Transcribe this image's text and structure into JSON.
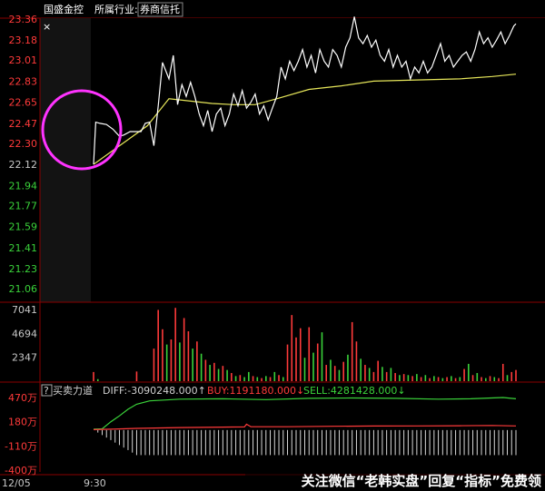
{
  "header": {
    "stock_name": "国盛金控",
    "tab_industry": "所属行业:",
    "tab_sector": "券商信托",
    "close_glyph": "×"
  },
  "chart_data": {
    "type": "line",
    "price_axis": {
      "ticks_red": [
        "23.36",
        "23.18",
        "23.01",
        "22.83",
        "22.65",
        "22.47",
        "22.30"
      ],
      "ticks_white": [
        "22.12"
      ],
      "ticks_green": [
        "21.94",
        "21.77",
        "21.59",
        "21.41",
        "21.23",
        "21.06"
      ],
      "ylim": [
        21.06,
        23.36
      ]
    },
    "x_labels": [
      "12/05",
      "9:30"
    ],
    "price_series": [
      {
        "x": 0,
        "y": 22.12
      },
      {
        "x": 1,
        "y": 22.48
      },
      {
        "x": 3,
        "y": 22.47
      },
      {
        "x": 6,
        "y": 22.46
      },
      {
        "x": 9,
        "y": 22.42
      },
      {
        "x": 12,
        "y": 22.36
      },
      {
        "x": 14,
        "y": 22.37
      },
      {
        "x": 17,
        "y": 22.4
      },
      {
        "x": 22,
        "y": 22.4
      },
      {
        "x": 24,
        "y": 22.47
      },
      {
        "x": 26,
        "y": 22.48
      },
      {
        "x": 28,
        "y": 22.28
      },
      {
        "x": 30,
        "y": 22.62
      },
      {
        "x": 32,
        "y": 22.99
      },
      {
        "x": 35,
        "y": 22.85
      },
      {
        "x": 37,
        "y": 23.05
      },
      {
        "x": 39,
        "y": 22.63
      },
      {
        "x": 41,
        "y": 22.8
      },
      {
        "x": 43,
        "y": 22.7
      },
      {
        "x": 45,
        "y": 22.82
      },
      {
        "x": 47,
        "y": 22.7
      },
      {
        "x": 49,
        "y": 22.55
      },
      {
        "x": 51,
        "y": 22.45
      },
      {
        "x": 53,
        "y": 22.58
      },
      {
        "x": 55,
        "y": 22.4
      },
      {
        "x": 57,
        "y": 22.55
      },
      {
        "x": 59,
        "y": 22.6
      },
      {
        "x": 61,
        "y": 22.45
      },
      {
        "x": 63,
        "y": 22.55
      },
      {
        "x": 65,
        "y": 22.72
      },
      {
        "x": 67,
        "y": 22.62
      },
      {
        "x": 69,
        "y": 22.75
      },
      {
        "x": 71,
        "y": 22.6
      },
      {
        "x": 73,
        "y": 22.65
      },
      {
        "x": 75,
        "y": 22.72
      },
      {
        "x": 77,
        "y": 22.55
      },
      {
        "x": 79,
        "y": 22.62
      },
      {
        "x": 81,
        "y": 22.5
      },
      {
        "x": 83,
        "y": 22.6
      },
      {
        "x": 85,
        "y": 22.7
      },
      {
        "x": 87,
        "y": 22.95
      },
      {
        "x": 89,
        "y": 22.85
      },
      {
        "x": 91,
        "y": 23.0
      },
      {
        "x": 93,
        "y": 22.92
      },
      {
        "x": 95,
        "y": 23.0
      },
      {
        "x": 97,
        "y": 23.1
      },
      {
        "x": 99,
        "y": 22.95
      },
      {
        "x": 101,
        "y": 23.05
      },
      {
        "x": 103,
        "y": 22.9
      },
      {
        "x": 105,
        "y": 23.1
      },
      {
        "x": 107,
        "y": 23.0
      },
      {
        "x": 109,
        "y": 22.95
      },
      {
        "x": 111,
        "y": 23.1
      },
      {
        "x": 113,
        "y": 23.05
      },
      {
        "x": 115,
        "y": 22.95
      },
      {
        "x": 117,
        "y": 23.12
      },
      {
        "x": 119,
        "y": 23.2
      },
      {
        "x": 121,
        "y": 23.38
      },
      {
        "x": 123,
        "y": 23.2
      },
      {
        "x": 125,
        "y": 23.15
      },
      {
        "x": 127,
        "y": 23.22
      },
      {
        "x": 129,
        "y": 23.12
      },
      {
        "x": 131,
        "y": 23.18
      },
      {
        "x": 133,
        "y": 23.05
      },
      {
        "x": 135,
        "y": 23.0
      },
      {
        "x": 137,
        "y": 23.1
      },
      {
        "x": 139,
        "y": 22.95
      },
      {
        "x": 141,
        "y": 23.05
      },
      {
        "x": 143,
        "y": 22.95
      },
      {
        "x": 145,
        "y": 23.0
      },
      {
        "x": 147,
        "y": 22.85
      },
      {
        "x": 149,
        "y": 22.95
      },
      {
        "x": 151,
        "y": 22.9
      },
      {
        "x": 153,
        "y": 23.0
      },
      {
        "x": 155,
        "y": 22.9
      },
      {
        "x": 157,
        "y": 22.95
      },
      {
        "x": 159,
        "y": 23.05
      },
      {
        "x": 161,
        "y": 23.15
      },
      {
        "x": 163,
        "y": 23.0
      },
      {
        "x": 165,
        "y": 23.05
      },
      {
        "x": 167,
        "y": 22.95
      },
      {
        "x": 169,
        "y": 23.0
      },
      {
        "x": 171,
        "y": 23.05
      },
      {
        "x": 173,
        "y": 23.08
      },
      {
        "x": 175,
        "y": 23.0
      },
      {
        "x": 177,
        "y": 23.1
      },
      {
        "x": 179,
        "y": 23.25
      },
      {
        "x": 181,
        "y": 23.15
      },
      {
        "x": 183,
        "y": 23.2
      },
      {
        "x": 185,
        "y": 23.12
      },
      {
        "x": 187,
        "y": 23.18
      },
      {
        "x": 189,
        "y": 23.25
      },
      {
        "x": 191,
        "y": 23.15
      },
      {
        "x": 193,
        "y": 23.22
      },
      {
        "x": 195,
        "y": 23.3
      },
      {
        "x": 196,
        "y": 23.32
      }
    ],
    "avg_series": [
      {
        "x": 0,
        "y": 22.12
      },
      {
        "x": 25,
        "y": 22.45
      },
      {
        "x": 35,
        "y": 22.68
      },
      {
        "x": 45,
        "y": 22.66
      },
      {
        "x": 55,
        "y": 22.64
      },
      {
        "x": 65,
        "y": 22.63
      },
      {
        "x": 75,
        "y": 22.63
      },
      {
        "x": 85,
        "y": 22.68
      },
      {
        "x": 100,
        "y": 22.76
      },
      {
        "x": 115,
        "y": 22.79
      },
      {
        "x": 130,
        "y": 22.83
      },
      {
        "x": 150,
        "y": 22.84
      },
      {
        "x": 170,
        "y": 22.85
      },
      {
        "x": 185,
        "y": 22.87
      },
      {
        "x": 196,
        "y": 22.89
      }
    ],
    "volume_axis": {
      "ticks": [
        "7041",
        "4694",
        "2347"
      ],
      "ylim": [
        0,
        7041
      ]
    },
    "volume_bars": [
      {
        "x": 0,
        "v": 900,
        "c": "r"
      },
      {
        "x": 2,
        "v": 200,
        "c": "g"
      },
      {
        "x": 20,
        "v": 950,
        "c": "r"
      },
      {
        "x": 28,
        "v": 3200,
        "c": "r"
      },
      {
        "x": 30,
        "v": 7000,
        "c": "r"
      },
      {
        "x": 32,
        "v": 5100,
        "c": "r"
      },
      {
        "x": 34,
        "v": 3600,
        "c": "g"
      },
      {
        "x": 36,
        "v": 4100,
        "c": "r"
      },
      {
        "x": 38,
        "v": 7200,
        "c": "r"
      },
      {
        "x": 40,
        "v": 3800,
        "c": "g"
      },
      {
        "x": 42,
        "v": 6200,
        "c": "r"
      },
      {
        "x": 44,
        "v": 4900,
        "c": "r"
      },
      {
        "x": 46,
        "v": 3200,
        "c": "g"
      },
      {
        "x": 48,
        "v": 3900,
        "c": "r"
      },
      {
        "x": 50,
        "v": 2700,
        "c": "g"
      },
      {
        "x": 52,
        "v": 2100,
        "c": "r"
      },
      {
        "x": 54,
        "v": 1600,
        "c": "g"
      },
      {
        "x": 56,
        "v": 1800,
        "c": "r"
      },
      {
        "x": 58,
        "v": 1200,
        "c": "g"
      },
      {
        "x": 60,
        "v": 1500,
        "c": "r"
      },
      {
        "x": 62,
        "v": 1100,
        "c": "g"
      },
      {
        "x": 64,
        "v": 800,
        "c": "r"
      },
      {
        "x": 66,
        "v": 500,
        "c": "g"
      },
      {
        "x": 68,
        "v": 600,
        "c": "r"
      },
      {
        "x": 70,
        "v": 400,
        "c": "g"
      },
      {
        "x": 72,
        "v": 900,
        "c": "g"
      },
      {
        "x": 74,
        "v": 500,
        "c": "r"
      },
      {
        "x": 76,
        "v": 400,
        "c": "g"
      },
      {
        "x": 78,
        "v": 300,
        "c": "r"
      },
      {
        "x": 80,
        "v": 500,
        "c": "g"
      },
      {
        "x": 82,
        "v": 400,
        "c": "r"
      },
      {
        "x": 84,
        "v": 900,
        "c": "g"
      },
      {
        "x": 86,
        "v": 600,
        "c": "r"
      },
      {
        "x": 88,
        "v": 400,
        "c": "g"
      },
      {
        "x": 90,
        "v": 3600,
        "c": "r"
      },
      {
        "x": 92,
        "v": 6500,
        "c": "r"
      },
      {
        "x": 94,
        "v": 4300,
        "c": "r"
      },
      {
        "x": 96,
        "v": 5200,
        "c": "r"
      },
      {
        "x": 98,
        "v": 2300,
        "c": "g"
      },
      {
        "x": 100,
        "v": 5300,
        "c": "r"
      },
      {
        "x": 102,
        "v": 2800,
        "c": "g"
      },
      {
        "x": 104,
        "v": 3700,
        "c": "r"
      },
      {
        "x": 106,
        "v": 4800,
        "c": "g"
      },
      {
        "x": 108,
        "v": 1600,
        "c": "r"
      },
      {
        "x": 110,
        "v": 2100,
        "c": "g"
      },
      {
        "x": 112,
        "v": 1500,
        "c": "r"
      },
      {
        "x": 114,
        "v": 1100,
        "c": "g"
      },
      {
        "x": 116,
        "v": 1900,
        "c": "r"
      },
      {
        "x": 118,
        "v": 2600,
        "c": "g"
      },
      {
        "x": 120,
        "v": 5800,
        "c": "r"
      },
      {
        "x": 122,
        "v": 3900,
        "c": "r"
      },
      {
        "x": 124,
        "v": 2200,
        "c": "g"
      },
      {
        "x": 126,
        "v": 1600,
        "c": "r"
      },
      {
        "x": 128,
        "v": 1300,
        "c": "g"
      },
      {
        "x": 130,
        "v": 900,
        "c": "r"
      },
      {
        "x": 132,
        "v": 2000,
        "c": "r"
      },
      {
        "x": 134,
        "v": 1400,
        "c": "g"
      },
      {
        "x": 136,
        "v": 900,
        "c": "r"
      },
      {
        "x": 138,
        "v": 1300,
        "c": "g"
      },
      {
        "x": 140,
        "v": 800,
        "c": "r"
      },
      {
        "x": 142,
        "v": 600,
        "c": "g"
      },
      {
        "x": 144,
        "v": 700,
        "c": "r"
      },
      {
        "x": 146,
        "v": 600,
        "c": "g"
      },
      {
        "x": 148,
        "v": 500,
        "c": "r"
      },
      {
        "x": 150,
        "v": 700,
        "c": "g"
      },
      {
        "x": 152,
        "v": 400,
        "c": "r"
      },
      {
        "x": 154,
        "v": 600,
        "c": "g"
      },
      {
        "x": 156,
        "v": 300,
        "c": "r"
      },
      {
        "x": 158,
        "v": 500,
        "c": "g"
      },
      {
        "x": 160,
        "v": 400,
        "c": "r"
      },
      {
        "x": 162,
        "v": 300,
        "c": "g"
      },
      {
        "x": 164,
        "v": 400,
        "c": "r"
      },
      {
        "x": 166,
        "v": 500,
        "c": "g"
      },
      {
        "x": 168,
        "v": 300,
        "c": "r"
      },
      {
        "x": 170,
        "v": 400,
        "c": "g"
      },
      {
        "x": 172,
        "v": 1200,
        "c": "r"
      },
      {
        "x": 174,
        "v": 1700,
        "c": "g"
      },
      {
        "x": 176,
        "v": 600,
        "c": "r"
      },
      {
        "x": 178,
        "v": 800,
        "c": "g"
      },
      {
        "x": 180,
        "v": 400,
        "c": "r"
      },
      {
        "x": 182,
        "v": 300,
        "c": "g"
      },
      {
        "x": 184,
        "v": 500,
        "c": "r"
      },
      {
        "x": 186,
        "v": 400,
        "c": "g"
      },
      {
        "x": 188,
        "v": 300,
        "c": "r"
      },
      {
        "x": 190,
        "v": 1700,
        "c": "r"
      },
      {
        "x": 192,
        "v": 600,
        "c": "g"
      },
      {
        "x": 194,
        "v": 900,
        "c": "r"
      },
      {
        "x": 196,
        "v": 1100,
        "c": "r"
      }
    ],
    "indicator": {
      "help_glyph": "?",
      "name": "买卖力道",
      "diff": "DIFF:-3090248.000↑",
      "buy": "BUY:1191180.000↓",
      "sell": "SELL:4281428.000↓",
      "axis_ticks": [
        "470万",
        "180万",
        "-110万",
        "-400万"
      ],
      "ylim": [
        -400,
        470
      ],
      "sell_series": [
        {
          "x": 0,
          "y": 90
        },
        {
          "x": 4,
          "y": 95
        },
        {
          "x": 8,
          "y": 180
        },
        {
          "x": 12,
          "y": 250
        },
        {
          "x": 16,
          "y": 330
        },
        {
          "x": 20,
          "y": 390
        },
        {
          "x": 26,
          "y": 430
        },
        {
          "x": 40,
          "y": 450
        },
        {
          "x": 60,
          "y": 455
        },
        {
          "x": 80,
          "y": 445
        },
        {
          "x": 100,
          "y": 460
        },
        {
          "x": 120,
          "y": 465
        },
        {
          "x": 140,
          "y": 460
        },
        {
          "x": 160,
          "y": 450
        },
        {
          "x": 175,
          "y": 455
        },
        {
          "x": 190,
          "y": 470
        },
        {
          "x": 196,
          "y": 455
        }
      ],
      "buy_series": [
        {
          "x": 0,
          "y": 85
        },
        {
          "x": 8,
          "y": 90
        },
        {
          "x": 20,
          "y": 100
        },
        {
          "x": 40,
          "y": 110
        },
        {
          "x": 60,
          "y": 115
        },
        {
          "x": 70,
          "y": 118
        },
        {
          "x": 71,
          "y": 150
        },
        {
          "x": 73,
          "y": 120
        },
        {
          "x": 90,
          "y": 120
        },
        {
          "x": 110,
          "y": 125
        },
        {
          "x": 130,
          "y": 128
        },
        {
          "x": 150,
          "y": 130
        },
        {
          "x": 170,
          "y": 132
        },
        {
          "x": 185,
          "y": 135
        },
        {
          "x": 196,
          "y": 130
        }
      ],
      "diff_bars_min": -300
    }
  },
  "watermark": {
    "text": "关注微信“老韩实盘”回复“指标”免费领"
  }
}
